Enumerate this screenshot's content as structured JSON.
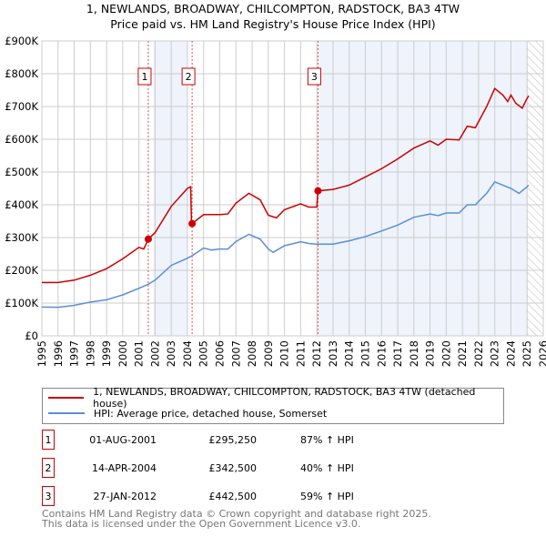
{
  "chart_data": {
    "type": "line",
    "title": "1, NEWLANDS, BROADWAY, CHILCOMPTON, RADSTOCK, BA3 4TW",
    "subtitle": "Price paid vs. HM Land Registry's House Price Index (HPI)",
    "xlim": [
      1995,
      2026
    ],
    "ylim": [
      0,
      900000
    ],
    "x_ticks": [
      "1995",
      "1996",
      "1997",
      "1998",
      "1999",
      "2000",
      "2001",
      "2002",
      "2003",
      "2004",
      "2005",
      "2006",
      "2007",
      "2008",
      "2009",
      "2010",
      "2011",
      "2012",
      "2013",
      "2014",
      "2015",
      "2016",
      "2017",
      "2018",
      "2019",
      "2020",
      "2021",
      "2022",
      "2023",
      "2024",
      "2025",
      "2026"
    ],
    "y_ticks": [
      {
        "v": 0,
        "label": "£0"
      },
      {
        "v": 100000,
        "label": "£100K"
      },
      {
        "v": 200000,
        "label": "£200K"
      },
      {
        "v": 300000,
        "label": "£300K"
      },
      {
        "v": 400000,
        "label": "£400K"
      },
      {
        "v": 500000,
        "label": "£500K"
      },
      {
        "v": 600000,
        "label": "£600K"
      },
      {
        "v": 700000,
        "label": "£700K"
      },
      {
        "v": 800000,
        "label": "£800K"
      },
      {
        "v": 900000,
        "label": "£900K"
      }
    ],
    "grid": true,
    "shaded_ranges": [
      [
        2001.9,
        2004.0
      ],
      [
        2012.1,
        2025.0
      ]
    ],
    "forecast_hatch_from": 2025.0,
    "series": [
      {
        "name": "1, NEWLANDS, BROADWAY, CHILCOMPTON, RADSTOCK, BA3 4TW (detached house)",
        "color": "#cc0000",
        "x": [
          1995,
          1996,
          1997,
          1998,
          1999,
          2000,
          2001,
          2001.3,
          2001.58,
          2002,
          2003,
          2004,
          2004.2,
          2004.25,
          2004.29,
          2005,
          2006,
          2006.5,
          2007,
          2007.8,
          2008.5,
          2009,
          2009.5,
          2010,
          2011,
          2011.5,
          2012,
          2012.07,
          2013,
          2014,
          2015,
          2016,
          2017,
          2018,
          2019,
          2019.5,
          2020,
          2020.8,
          2021.3,
          2021.8,
          2022.5,
          2023,
          2023.5,
          2023.8,
          2024,
          2024.3,
          2024.7,
          2025,
          2025.1
        ],
        "y": [
          163000,
          163000,
          170000,
          185000,
          205000,
          235000,
          270000,
          265000,
          295250,
          315000,
          395000,
          450000,
          455000,
          345000,
          342500,
          370000,
          370000,
          372000,
          405000,
          435000,
          415000,
          368000,
          360000,
          385000,
          403000,
          393000,
          393000,
          442500,
          447000,
          460000,
          485000,
          510000,
          540000,
          573000,
          595000,
          582000,
          600000,
          598000,
          640000,
          635000,
          700000,
          755000,
          735000,
          715000,
          735000,
          710000,
          695000,
          725000,
          732000
        ]
      },
      {
        "name": "HPI: Average price, detached house, Somerset",
        "color": "#5b8fd4",
        "x": [
          1995,
          1996,
          1997,
          1998,
          1999,
          2000,
          2001,
          2001.6,
          2002,
          2003,
          2004,
          2004.3,
          2005,
          2005.5,
          2006,
          2006.5,
          2007,
          2007.8,
          2008.5,
          2009,
          2009.3,
          2010,
          2011,
          2011.5,
          2012,
          2013,
          2014,
          2015,
          2016,
          2017,
          2018,
          2019,
          2019.5,
          2020,
          2020.8,
          2021.3,
          2021.8,
          2022.5,
          2023,
          2023.5,
          2024,
          2024.5,
          2025,
          2025.1
        ],
        "y": [
          88000,
          87000,
          93000,
          103000,
          110000,
          125000,
          145000,
          158000,
          170000,
          215000,
          237000,
          245000,
          268000,
          262000,
          265000,
          265000,
          288000,
          310000,
          295000,
          265000,
          255000,
          275000,
          287000,
          282000,
          280000,
          280000,
          290000,
          303000,
          320000,
          338000,
          362000,
          372000,
          367000,
          375000,
          375000,
          400000,
          400000,
          435000,
          470000,
          460000,
          450000,
          435000,
          455000,
          460000
        ]
      }
    ],
    "sales": [
      {
        "n": "1",
        "x": 2001.58,
        "y": 295250,
        "date": "01-AUG-2001",
        "price": "£295,250",
        "hpi": "87% ↑ HPI"
      },
      {
        "n": "2",
        "x": 2004.29,
        "y": 342500,
        "date": "14-APR-2004",
        "price": "£342,500",
        "hpi": "40% ↑ HPI"
      },
      {
        "n": "3",
        "x": 2012.07,
        "y": 442500,
        "date": "27-JAN-2012",
        "price": "£442,500",
        "hpi": "59% ↑ HPI"
      }
    ]
  },
  "footer": {
    "line1": "Contains HM Land Registry data © Crown copyright and database right 2025.",
    "line2": "This data is licensed under the Open Government Licence v3.0."
  }
}
